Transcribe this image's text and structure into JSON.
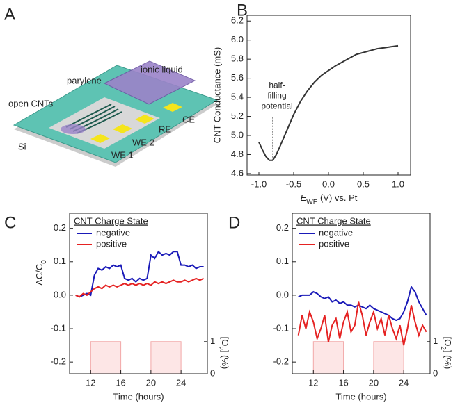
{
  "diagram": {
    "panel": "A",
    "labels": {
      "parylene": "parylene",
      "ionic_liquid": "ionic liquid",
      "open_cnts": "open CNTs",
      "ce": "CE",
      "re": "RE",
      "we2": "WE 2",
      "we1": "WE 1",
      "si": "Si"
    }
  },
  "chart_data": [
    {
      "type": "line",
      "panel": "B",
      "ylabel": "CNT Conductance (mS)",
      "xlabel": [
        "E",
        "WE",
        " (V) vs. Pt"
      ],
      "x": [
        -1.0,
        -0.95,
        -0.9,
        -0.85,
        -0.8,
        -0.75,
        -0.7,
        -0.6,
        -0.5,
        -0.4,
        -0.3,
        -0.2,
        -0.1,
        0.0,
        0.1,
        0.2,
        0.3,
        0.4,
        0.5,
        0.6,
        0.7,
        0.8,
        0.9,
        1.0
      ],
      "values": [
        4.93,
        4.85,
        4.78,
        4.74,
        4.74,
        4.8,
        4.88,
        5.05,
        5.22,
        5.36,
        5.47,
        5.56,
        5.63,
        5.68,
        5.73,
        5.77,
        5.81,
        5.85,
        5.87,
        5.89,
        5.91,
        5.92,
        5.93,
        5.94
      ],
      "color": "#333333",
      "xlim": [
        -1.17,
        1.18
      ],
      "ylim": [
        4.585,
        6.26
      ],
      "xticks": [
        {
          "value": -1.0,
          "label": "-1.0"
        },
        -0.5,
        {
          "value": 0.0,
          "label": "0.0"
        },
        0.5,
        {
          "value": 1.0,
          "label": "1.0"
        }
      ],
      "yticks": [
        4.6,
        4.8,
        {
          "value": 5.0,
          "label": "5.0"
        },
        5.2,
        5.4,
        5.6,
        5.8,
        {
          "value": 6.0,
          "label": "6.0"
        },
        6.2
      ],
      "annotation": {
        "text": [
          "half-",
          "filling",
          "potential"
        ],
        "x": -0.8,
        "y": [
          4.74,
          5.2
        ]
      }
    },
    {
      "type": "line",
      "panel": "C",
      "ylabel": [
        "ΔC/C",
        "0"
      ],
      "xlabel": "Time (hours)",
      "y2label": [
        "[O",
        "2",
        "] (%)"
      ],
      "legend_title": "CNT Charge State",
      "x": [
        10,
        10.5,
        11,
        11.5,
        12,
        12.5,
        13,
        13.5,
        14,
        14.5,
        15,
        15.5,
        16,
        16.5,
        17,
        17.5,
        18,
        18.5,
        19,
        19.5,
        20,
        20.5,
        21,
        21.5,
        22,
        22.5,
        23,
        23.5,
        24,
        24.5,
        25,
        25.5,
        26,
        26.5,
        27
      ],
      "series": [
        {
          "name": "negative",
          "color": "#1a1ab8",
          "values": [
            0.0,
            -0.005,
            0.0,
            0.005,
            0.0,
            0.06,
            0.08,
            0.075,
            0.085,
            0.08,
            0.09,
            0.085,
            0.09,
            0.05,
            0.045,
            0.05,
            0.04,
            0.05,
            0.045,
            0.05,
            0.12,
            0.11,
            0.13,
            0.12,
            0.125,
            0.12,
            0.13,
            0.13,
            0.09,
            0.09,
            0.085,
            0.09,
            0.08,
            0.085,
            0.085
          ]
        },
        {
          "name": "positive",
          "color": "#e52222",
          "values": [
            0.0,
            -0.005,
            0.005,
            0.0,
            0.01,
            0.02,
            0.025,
            0.02,
            0.03,
            0.025,
            0.03,
            0.025,
            0.03,
            0.035,
            0.03,
            0.035,
            0.03,
            0.035,
            0.03,
            0.035,
            0.03,
            0.04,
            0.035,
            0.04,
            0.035,
            0.04,
            0.045,
            0.04,
            0.04,
            0.045,
            0.04,
            0.045,
            0.05,
            0.045,
            0.05
          ]
        }
      ],
      "o2": {
        "x": [
          10,
          12,
          12,
          16,
          16,
          20,
          20,
          24,
          24,
          27
        ],
        "values": [
          0,
          0,
          1,
          1,
          0,
          0,
          1,
          1,
          0,
          0
        ],
        "axis": "y2",
        "color": "#fde6e6"
      },
      "xlim": [
        9.2,
        27.5
      ],
      "ylim": [
        -0.235,
        0.245
      ],
      "y2lim": [
        0,
        5
      ],
      "xticks": [
        12,
        16,
        20,
        24
      ],
      "yticks": [
        -0.2,
        -0.1,
        {
          "value": 0.0,
          "label": "0.0"
        },
        0.1,
        0.2
      ],
      "y2ticks": [
        0,
        1
      ]
    },
    {
      "type": "line",
      "panel": "D",
      "xlabel": "Time (hours)",
      "y2label": [
        "[O",
        "2",
        "] (%)"
      ],
      "legend_title": "CNT Charge State",
      "x": [
        10,
        10.5,
        11,
        11.5,
        12,
        12.5,
        13,
        13.5,
        14,
        14.5,
        15,
        15.5,
        16,
        16.5,
        17,
        17.5,
        18,
        18.5,
        19,
        19.5,
        20,
        20.5,
        21,
        21.5,
        22,
        22.5,
        23,
        23.5,
        24,
        24.5,
        25,
        25.5,
        26,
        26.5,
        27
      ],
      "series": [
        {
          "name": "negative",
          "color": "#1a1ab8",
          "values": [
            -0.005,
            0.0,
            0.0,
            0.0,
            0.01,
            0.005,
            -0.005,
            -0.01,
            -0.005,
            -0.02,
            -0.015,
            -0.025,
            -0.02,
            -0.03,
            -0.03,
            -0.035,
            -0.03,
            -0.035,
            -0.04,
            -0.03,
            -0.04,
            -0.045,
            -0.05,
            -0.055,
            -0.06,
            -0.07,
            -0.075,
            -0.07,
            -0.05,
            -0.02,
            0.025,
            0.01,
            -0.02,
            -0.04,
            -0.06
          ]
        },
        {
          "name": "positive",
          "color": "#e52222",
          "values": [
            -0.12,
            -0.06,
            -0.1,
            -0.05,
            -0.08,
            -0.13,
            -0.1,
            -0.06,
            -0.14,
            -0.09,
            -0.07,
            -0.13,
            -0.08,
            -0.05,
            -0.11,
            -0.09,
            -0.02,
            -0.06,
            -0.12,
            -0.08,
            -0.05,
            -0.1,
            -0.07,
            -0.12,
            -0.06,
            -0.1,
            -0.13,
            -0.09,
            -0.15,
            -0.1,
            -0.03,
            -0.08,
            -0.12,
            -0.09,
            -0.11
          ]
        }
      ],
      "o2": {
        "x": [
          10,
          12,
          12,
          16,
          16,
          20,
          20,
          24,
          24,
          27
        ],
        "values": [
          0,
          0,
          1,
          1,
          0,
          0,
          1,
          1,
          0,
          0
        ],
        "axis": "y2",
        "color": "#fde6e6"
      },
      "xlim": [
        9.2,
        27.5
      ],
      "ylim": [
        -0.235,
        0.245
      ],
      "y2lim": [
        0,
        5
      ],
      "xticks": [
        12,
        16,
        20,
        24
      ],
      "yticks": [
        -0.2,
        -0.1,
        {
          "value": 0.0,
          "label": "0.0"
        },
        0.1,
        0.2
      ],
      "y2ticks": [
        0,
        1
      ]
    }
  ]
}
